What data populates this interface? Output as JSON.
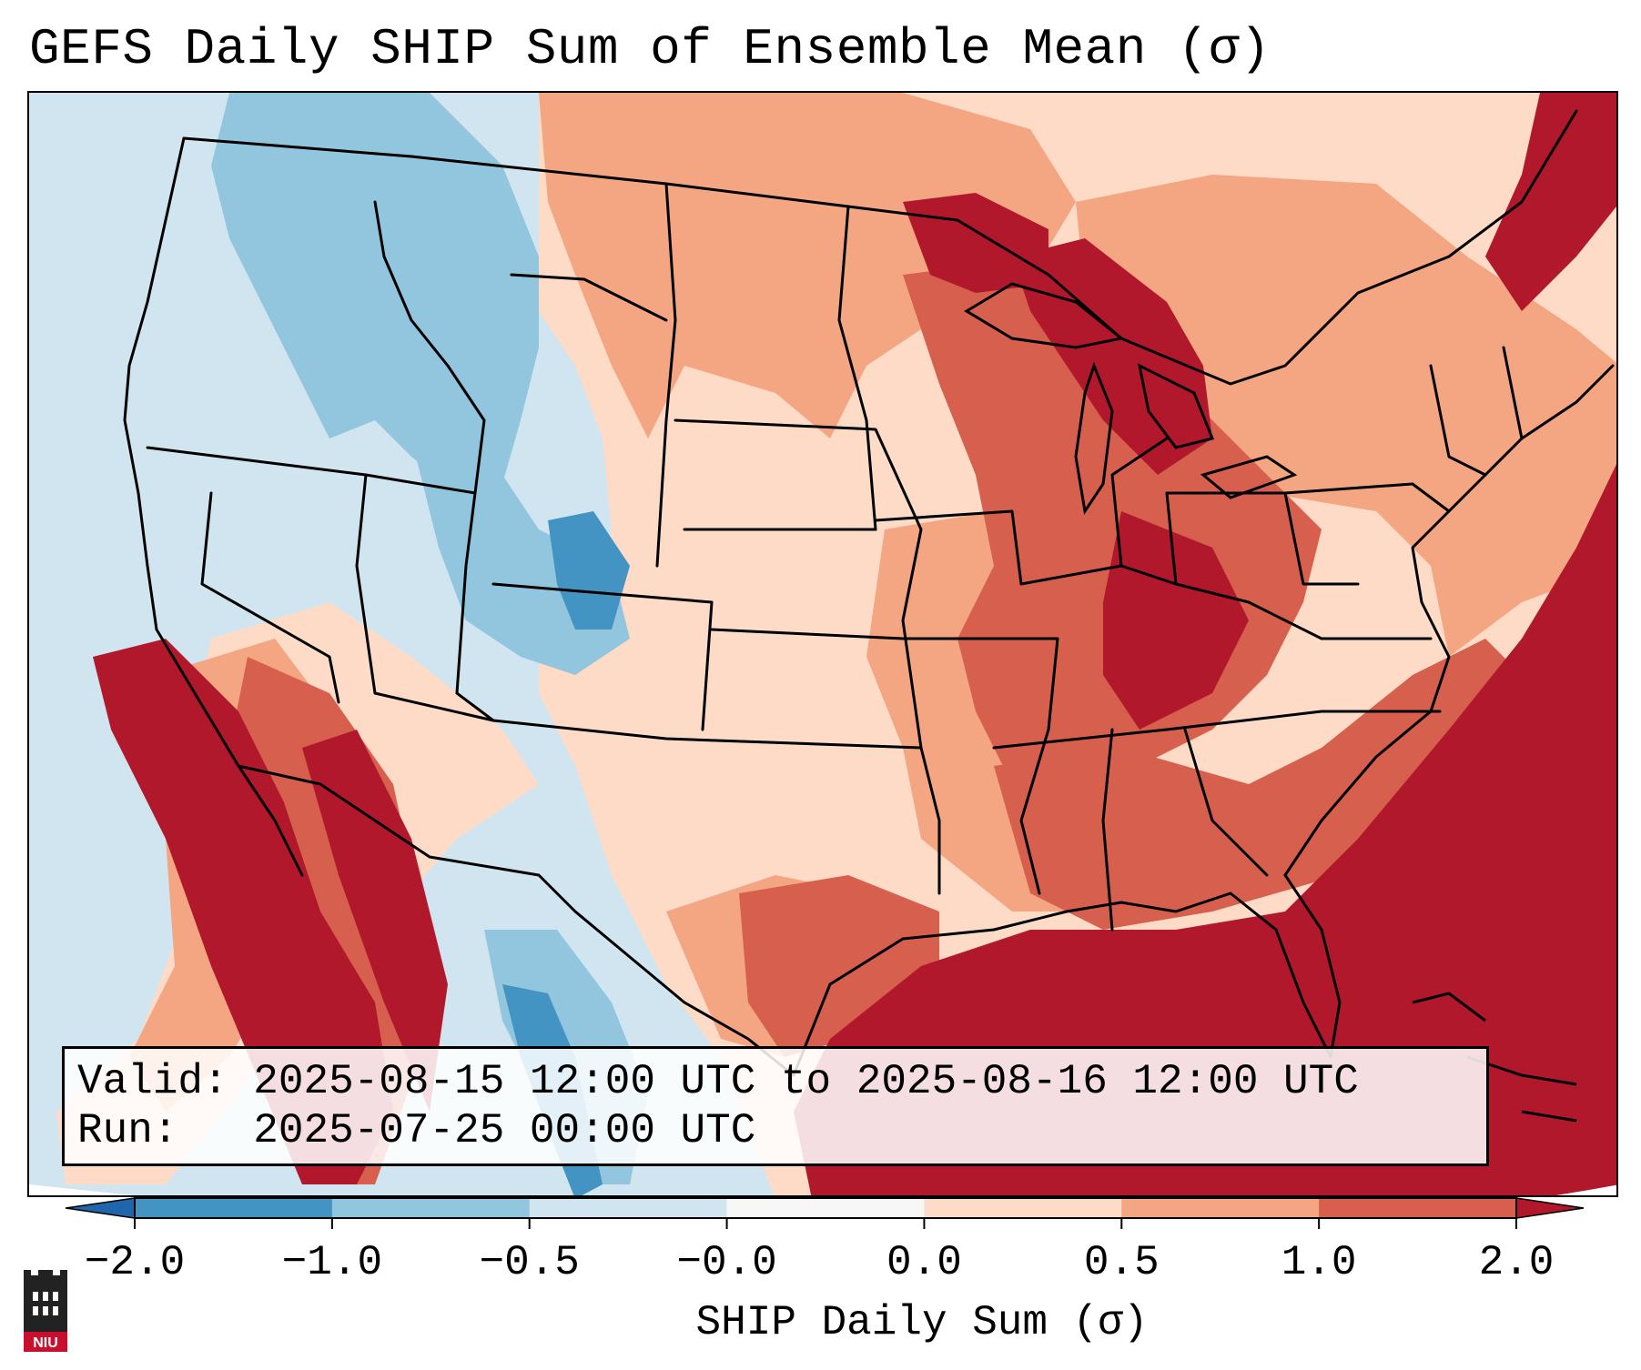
{
  "title": "GEFS Daily SHIP Sum of Ensemble Mean (σ)",
  "info": {
    "valid_label": "Valid:",
    "valid_value": "2025-08-15 12:00 UTC to 2025-08-16 12:00 UTC",
    "run_label": "Run:",
    "run_value": "2025-07-25 00:00 UTC"
  },
  "colorbar": {
    "title": "SHIP Daily Sum (σ)",
    "ticks": [
      "−2.0",
      "−1.0",
      "−0.5",
      "−0.0",
      "0.0",
      "0.5",
      "1.0",
      "2.0"
    ],
    "bins": [
      {
        "range": "below -2.0",
        "color": "#2166ac"
      },
      {
        "range": "-2.0 to -1.0",
        "color": "#4393c3"
      },
      {
        "range": "-1.0 to -0.5",
        "color": "#92c5de"
      },
      {
        "range": "-0.5 to -0.0",
        "color": "#d1e5f0"
      },
      {
        "range": "-0.0 to 0.0",
        "color": "#f7f7f7"
      },
      {
        "range": "0.0 to 0.5",
        "color": "#fddbc7"
      },
      {
        "range": "0.5 to 1.0",
        "color": "#f4a582"
      },
      {
        "range": "1.0 to 2.0",
        "color": "#d6604d"
      },
      {
        "range": "above 2.0",
        "color": "#b2182b"
      }
    ]
  },
  "logo": {
    "text": "NIU",
    "color": "#c8102e"
  }
}
